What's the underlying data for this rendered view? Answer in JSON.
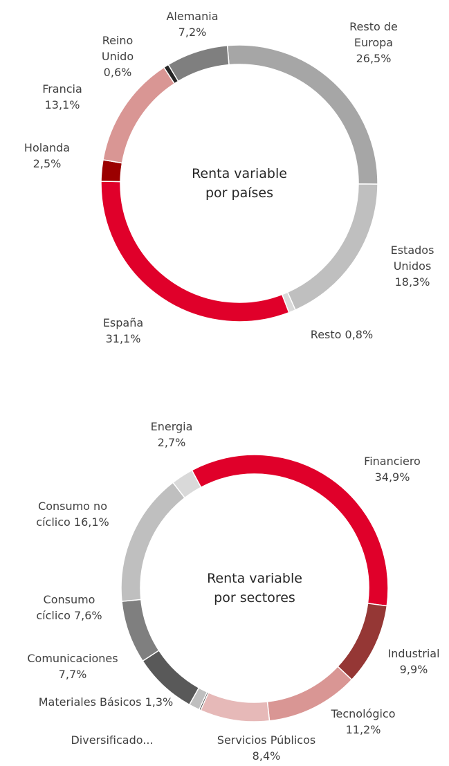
{
  "chart_data": [
    {
      "type": "pie",
      "donut": true,
      "title": "Renta variable por países",
      "categories": [
        "Resto de Europa",
        "Estados Unidos",
        "Resto",
        "España",
        "Holanda",
        "Francia",
        "Reino Unido",
        "Alemania"
      ],
      "values": [
        26.5,
        18.3,
        0.8,
        31.1,
        2.5,
        13.1,
        0.6,
        7.2
      ],
      "value_labels": [
        "26,5%",
        "18,3%",
        "0,8%",
        "31,1%",
        "2,5%",
        "13,1%",
        "0,6%",
        "7,2%"
      ],
      "colors": [
        "#a6a6a6",
        "#bfbfbf",
        "#d9d9d9",
        "#e0002a",
        "#9b0000",
        "#d99694",
        "#262626",
        "#7f7f7f"
      ]
    },
    {
      "type": "pie",
      "donut": true,
      "title": "Renta variable por sectores",
      "categories": [
        "Financiero",
        "Industrial",
        "Tecnológico",
        "Servicios Públicos",
        "Diversificado...",
        "Materiales Básicos",
        "Comunicaciones",
        "Consumo cíclico",
        "Consumo no cíclico",
        "Energia"
      ],
      "values": [
        34.9,
        9.9,
        11.2,
        8.4,
        0.2,
        1.3,
        7.7,
        7.6,
        16.1,
        2.7
      ],
      "value_labels": [
        "34,9%",
        "9,9%",
        "11,2%",
        "8,4%",
        null,
        "1,3%",
        "7,7%",
        "7,6%",
        "16,1%",
        "2,7%"
      ],
      "colors": [
        "#e0002a",
        "#953735",
        "#d99694",
        "#e6b9b8",
        "#262626",
        "#bfbfbf",
        "#595959",
        "#7f7f7f",
        "#bfbfbf",
        "#d9d9d9"
      ]
    }
  ]
}
